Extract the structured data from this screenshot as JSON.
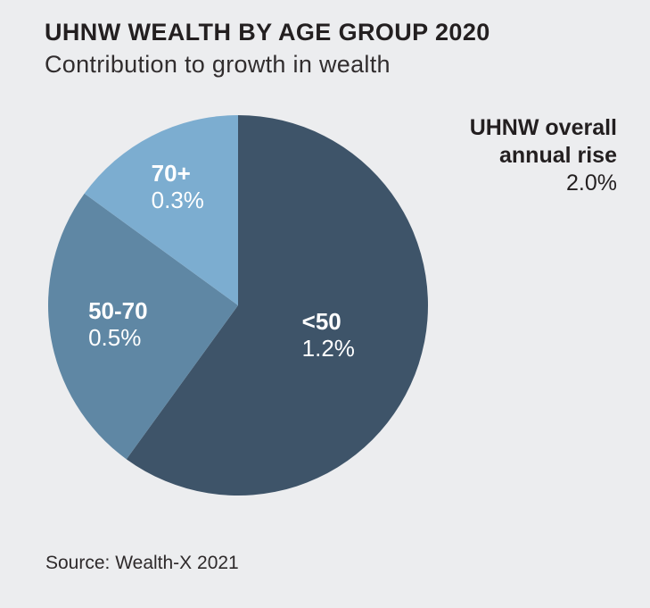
{
  "chart_data": {
    "type": "pie",
    "title": "UHNW WEALTH BY AGE GROUP 2020",
    "subtitle": "Contribution to growth in wealth",
    "total": 2.0,
    "start_angle_deg": -90,
    "direction": "clockwise",
    "legend_position": "labels-inside-slices",
    "slices": [
      {
        "label": "<50",
        "value": 1.2,
        "display": "1.2%",
        "color": "#3e5469",
        "label_r": 0.5
      },
      {
        "label": "50-70",
        "value": 0.5,
        "display": "0.5%",
        "color": "#5f87a4",
        "label_r": 0.64
      },
      {
        "label": "70+",
        "value": 0.3,
        "display": "0.3%",
        "color": "#7cadd0",
        "label_r": 0.7
      }
    ],
    "annotation": {
      "line1": "UHNW overall",
      "line2": "annual rise",
      "value": "2.0%"
    },
    "source": "Source: Wealth-X 2021"
  },
  "colors": {
    "background": "#ecedef",
    "title_text": "#231f20",
    "slice_label_text": "#ffffff"
  }
}
